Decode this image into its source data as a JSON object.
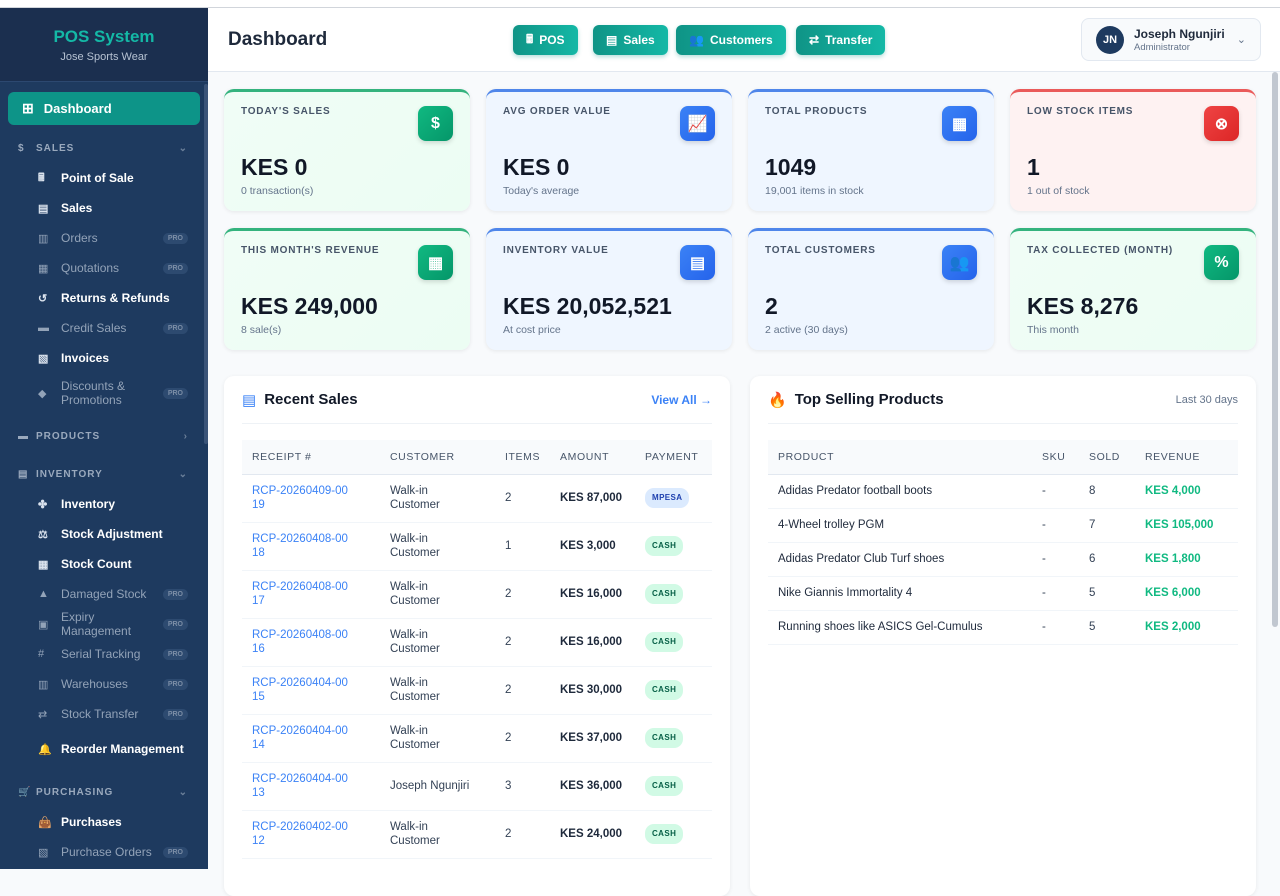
{
  "app": {
    "title": "POS System",
    "subtitle": "Jose Sports Wear"
  },
  "sidebar": {
    "dashboard": "Dashboard",
    "sections": [
      {
        "label": "SALES",
        "icon": "dollar-icon",
        "items": [
          {
            "label": "Point of Sale",
            "icon": "cash-register-icon",
            "pro": false
          },
          {
            "label": "Sales",
            "icon": "receipt-icon",
            "pro": false
          },
          {
            "label": "Orders",
            "icon": "clipboard-icon",
            "pro": true
          },
          {
            "label": "Quotations",
            "icon": "file-icon",
            "pro": true
          },
          {
            "label": "Returns & Refunds",
            "icon": "undo-icon",
            "pro": false
          },
          {
            "label": "Credit Sales",
            "icon": "credit-card-icon",
            "pro": true
          },
          {
            "label": "Invoices",
            "icon": "invoice-icon",
            "pro": false
          },
          {
            "label": "Discounts & Promotions",
            "icon": "tag-icon",
            "pro": true
          }
        ]
      },
      {
        "label": "PRODUCTS",
        "icon": "box-icon",
        "items": []
      },
      {
        "label": "INVENTORY",
        "icon": "warehouse-icon",
        "items": [
          {
            "label": "Inventory",
            "icon": "cubes-icon",
            "pro": false
          },
          {
            "label": "Stock Adjustment",
            "icon": "balance-scale-icon",
            "pro": false
          },
          {
            "label": "Stock Count",
            "icon": "calculator-icon",
            "pro": false
          },
          {
            "label": "Damaged Stock",
            "icon": "warning-icon",
            "pro": true
          },
          {
            "label": "Expiry Management",
            "icon": "calendar-x-icon",
            "pro": true
          },
          {
            "label": "Serial Tracking",
            "icon": "hashtag-icon",
            "pro": true
          },
          {
            "label": "Warehouses",
            "icon": "building-icon",
            "pro": true
          },
          {
            "label": "Stock Transfer",
            "icon": "exchange-icon",
            "pro": true
          },
          {
            "label": "Reorder Management",
            "icon": "bell-icon",
            "pro": false
          }
        ]
      },
      {
        "label": "PURCHASING",
        "icon": "cart-icon",
        "items": [
          {
            "label": "Purchases",
            "icon": "shopping-bag-icon",
            "pro": false
          },
          {
            "label": "Purchase Orders",
            "icon": "file-invoice-icon",
            "pro": true
          }
        ]
      }
    ],
    "pro_label": "PRO"
  },
  "header": {
    "title": "Dashboard",
    "quick_actions": [
      {
        "label": "POS",
        "icon": "cash-register-icon"
      },
      {
        "label": "Sales",
        "icon": "receipt-icon"
      },
      {
        "label": "Customers",
        "icon": "users-icon"
      },
      {
        "label": "Transfer",
        "icon": "exchange-icon"
      }
    ],
    "user": {
      "initials": "JN",
      "name": "Joseph Ngunjiri",
      "role": "Administrator"
    }
  },
  "stats": [
    {
      "label": "TODAY'S SALES",
      "value": "KES 0",
      "sub": "0 transaction(s)",
      "icon": "dollar-icon",
      "color": "#10b981"
    },
    {
      "label": "AVG ORDER VALUE",
      "value": "KES 0",
      "sub": "Today's average",
      "icon": "chart-line-icon",
      "color": "#3b82f6"
    },
    {
      "label": "TOTAL PRODUCTS",
      "value": "1049",
      "sub": "19,001 items in stock",
      "icon": "boxes-icon",
      "color": "#3b82f6"
    },
    {
      "label": "LOW STOCK ITEMS",
      "value": "1",
      "sub": "1 out of stock",
      "icon": "times-circle-icon",
      "color": "#ef4444"
    },
    {
      "label": "THIS MONTH'S REVENUE",
      "value": "KES 249,000",
      "sub": "8 sale(s)",
      "icon": "calendar-icon",
      "color": "#10b981"
    },
    {
      "label": "INVENTORY VALUE",
      "value": "KES 20,052,521",
      "sub": "At cost price",
      "icon": "warehouse-icon",
      "color": "#3b82f6"
    },
    {
      "label": "TOTAL CUSTOMERS",
      "value": "2",
      "sub": "2 active (30 days)",
      "icon": "users-icon",
      "color": "#3b82f6"
    },
    {
      "label": "TAX COLLECTED (MONTH)",
      "value": "KES 8,276",
      "sub": "This month",
      "icon": "percent-icon",
      "color": "#10b981"
    }
  ],
  "recent_sales": {
    "title": "Recent Sales",
    "view_all": "View All →",
    "columns": [
      "RECEIPT #",
      "CUSTOMER",
      "ITEMS",
      "AMOUNT",
      "PAYMENT"
    ],
    "rows": [
      {
        "receipt": "RCP-20260409-0019",
        "customer": "Walk-in Customer",
        "items": "2",
        "amount": "KES 87,000",
        "payment": "MPESA"
      },
      {
        "receipt": "RCP-20260408-0018",
        "customer": "Walk-in Customer",
        "items": "1",
        "amount": "KES 3,000",
        "payment": "CASH"
      },
      {
        "receipt": "RCP-20260408-0017",
        "customer": "Walk-in Customer",
        "items": "2",
        "amount": "KES 16,000",
        "payment": "CASH"
      },
      {
        "receipt": "RCP-20260408-0016",
        "customer": "Walk-in Customer",
        "items": "2",
        "amount": "KES 16,000",
        "payment": "CASH"
      },
      {
        "receipt": "RCP-20260404-0015",
        "customer": "Walk-in Customer",
        "items": "2",
        "amount": "KES 30,000",
        "payment": "CASH"
      },
      {
        "receipt": "RCP-20260404-0014",
        "customer": "Walk-in Customer",
        "items": "2",
        "amount": "KES 37,000",
        "payment": "CASH"
      },
      {
        "receipt": "RCP-20260404-0013",
        "customer": "Joseph Ngunjiri",
        "items": "3",
        "amount": "KES 36,000",
        "payment": "CASH"
      },
      {
        "receipt": "RCP-20260402-0012",
        "customer": "Walk-in Customer",
        "items": "2",
        "amount": "KES 24,000",
        "payment": "CASH"
      }
    ]
  },
  "top_products": {
    "title": "Top Selling Products",
    "period": "Last 30 days",
    "columns": [
      "PRODUCT",
      "SKU",
      "SOLD",
      "REVENUE"
    ],
    "rows": [
      {
        "product": "Adidas Predator football boots",
        "sku": "-",
        "sold": "8",
        "revenue": "KES 4,000"
      },
      {
        "product": "4-Wheel trolley PGM",
        "sku": "-",
        "sold": "7",
        "revenue": "KES 105,000"
      },
      {
        "product": "Adidas Predator Club Turf shoes",
        "sku": "-",
        "sold": "6",
        "revenue": "KES 1,800"
      },
      {
        "product": "Nike Giannis Immortality 4",
        "sku": "-",
        "sold": "5",
        "revenue": "KES 6,000"
      },
      {
        "product": "Running shoes like ASICS Gel-Cumulus",
        "sku": "-",
        "sold": "5",
        "revenue": "KES 2,000"
      }
    ]
  }
}
